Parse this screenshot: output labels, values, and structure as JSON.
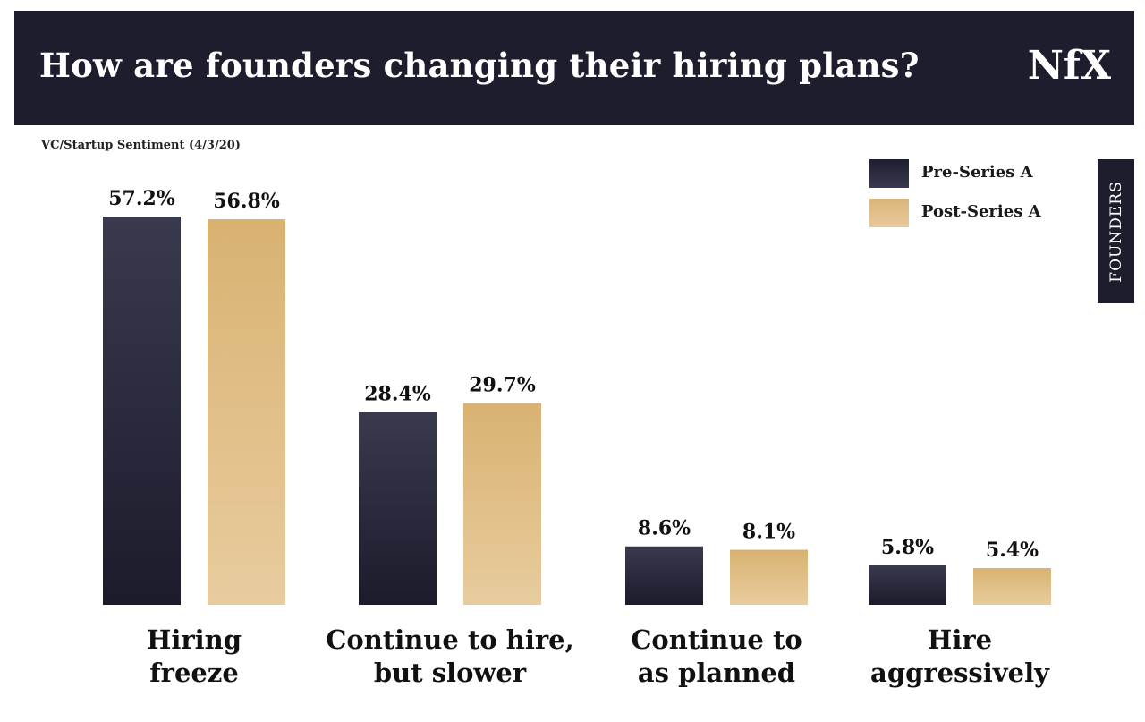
{
  "header": {
    "title": "How are founders changing their hiring plans?",
    "logo": "NfX"
  },
  "side_tab": "FOUNDERS",
  "colors": {
    "header_bg": "#1d1d2e",
    "pre_series_a": "#2a2a3e",
    "post_series_a": "#deb97f"
  },
  "chart_data": {
    "type": "bar",
    "title": "How are founders changing their hiring plans?",
    "subtitle": "VC/Startup Sentiment (4/3/20)",
    "categories": [
      [
        "Hiring",
        "freeze"
      ],
      [
        "Continue to hire,",
        "but slower"
      ],
      [
        "Continue to",
        "as planned"
      ],
      [
        "Hire",
        "aggressively"
      ]
    ],
    "series": [
      {
        "name": "Pre-Series A",
        "values": [
          57.2,
          28.4,
          8.6,
          5.8
        ],
        "labels": [
          "57.2%",
          "28.4%",
          "8.6%",
          "5.8%"
        ]
      },
      {
        "name": "Post-Series A",
        "values": [
          56.8,
          29.7,
          8.1,
          5.4
        ],
        "labels": [
          "56.8%",
          "29.7%",
          "8.1%",
          "5.4%"
        ]
      }
    ],
    "ylim": [
      0,
      60
    ],
    "grid": false,
    "legend_position": "top-right",
    "xlabel": "",
    "ylabel": ""
  }
}
